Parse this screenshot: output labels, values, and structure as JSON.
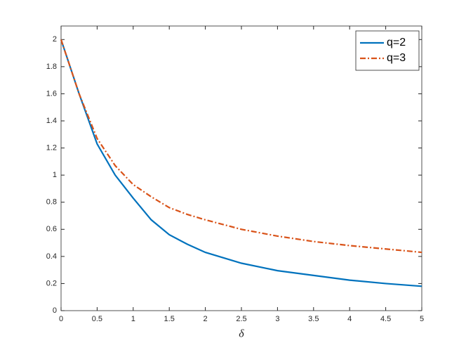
{
  "chart_data": {
    "type": "line",
    "xlabel": "δ",
    "x": [
      0,
      0.25,
      0.5,
      0.75,
      1,
      1.25,
      1.5,
      1.75,
      2,
      2.5,
      3,
      3.5,
      4,
      4.5,
      5
    ],
    "series": [
      {
        "name": "q=2",
        "color": "#0072bd",
        "dash": "solid",
        "values": [
          2,
          1.6,
          1.23,
          1.0,
          0.83,
          0.67,
          0.56,
          0.49,
          0.43,
          0.35,
          0.295,
          0.26,
          0.225,
          0.2,
          0.18
        ]
      },
      {
        "name": "q=3",
        "color": "#d95319",
        "dash": "dashdot",
        "values": [
          2,
          1.6,
          1.27,
          1.07,
          0.93,
          0.84,
          0.76,
          0.71,
          0.67,
          0.6,
          0.55,
          0.51,
          0.48,
          0.455,
          0.43
        ]
      }
    ],
    "xlim": [
      0,
      5
    ],
    "xticks": [
      0,
      0.5,
      1,
      1.5,
      2,
      2.5,
      3,
      3.5,
      4,
      4.5,
      5
    ],
    "ylim": [
      0,
      2.1
    ],
    "yticks": [
      0,
      0.2,
      0.4,
      0.6,
      0.8,
      1,
      1.2,
      1.4,
      1.6,
      1.8,
      2
    ],
    "grid": false,
    "legend": "northeast"
  }
}
